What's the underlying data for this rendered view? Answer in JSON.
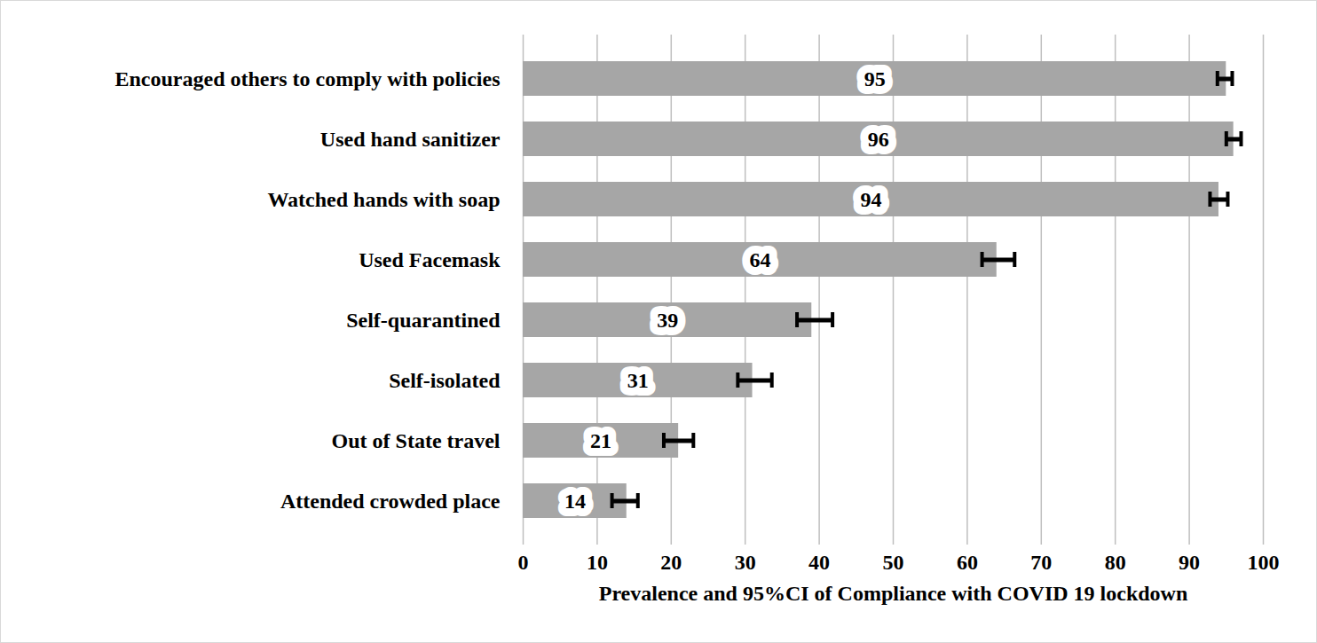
{
  "chart_data": {
    "type": "bar",
    "orientation": "horizontal",
    "categories": [
      "Encouraged others to comply with policies",
      "Used hand sanitizer",
      "Watched hands with soap",
      "Used Facemask",
      "Self-quarantined",
      "Self-isolated",
      "Out of State travel",
      "Attended crowded place"
    ],
    "values": [
      95,
      96,
      94,
      64,
      39,
      31,
      21,
      14
    ],
    "ci_low": [
      93.8,
      95.0,
      92.8,
      62.0,
      37.0,
      29.0,
      19.0,
      12.0
    ],
    "ci_high": [
      95.8,
      97.0,
      95.2,
      66.4,
      41.8,
      33.6,
      23.0,
      15.5
    ],
    "color": "#a6a6a6",
    "xlabel": "Prevalence and 95%CI of Compliance with COVID 19 lockdown",
    "xlim": [
      0,
      100
    ],
    "xticks": [
      0,
      10,
      20,
      30,
      40,
      50,
      60,
      70,
      80,
      90,
      100
    ],
    "grid": true,
    "data_labels": true
  }
}
